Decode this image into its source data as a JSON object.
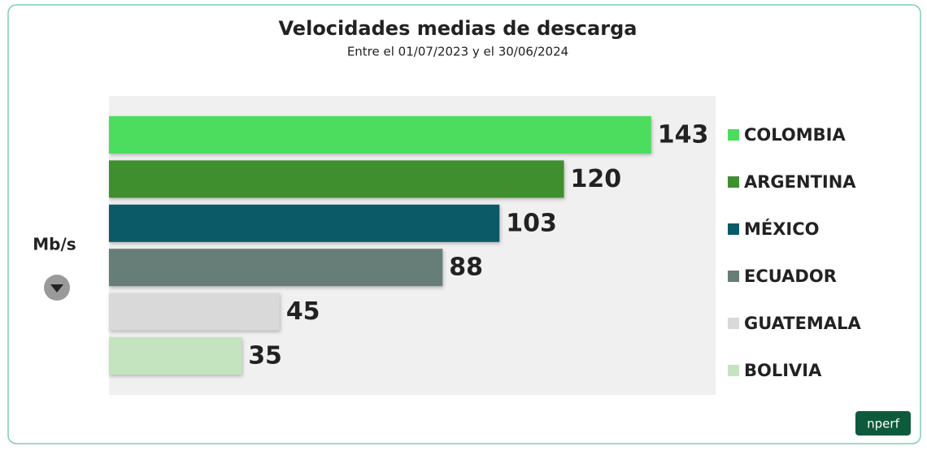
{
  "chart_data": {
    "type": "bar",
    "orientation": "horizontal",
    "title": "Velocidades medias de descarga",
    "subtitle": "Entre el 01/07/2023 y el 30/06/2024",
    "unit_label": "Mb/s",
    "brand": "nperf",
    "categories": [
      "COLOMBIA",
      "ARGENTINA",
      "MÉXICO",
      "ECUADOR",
      "GUATEMALA",
      "BOLIVIA"
    ],
    "values": [
      143,
      120,
      103,
      88,
      45,
      35
    ],
    "colors": [
      "#4cdd5f",
      "#3f8f2e",
      "#0b5a68",
      "#677d77",
      "#d9d9d9",
      "#c4e4c0"
    ],
    "xlim": [
      0,
      160
    ]
  }
}
